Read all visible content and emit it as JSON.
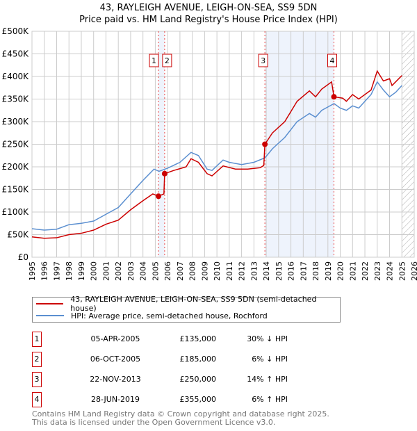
{
  "chart_data": {
    "type": "line",
    "title": "43, RAYLEIGH AVENUE, LEIGH-ON-SEA, SS9 5DN",
    "subtitle": "Price paid vs. HM Land Registry's House Price Index (HPI)",
    "xlim": [
      1995,
      2026
    ],
    "ylim": [
      0,
      500000
    ],
    "x_ticks": [
      "1995",
      "1996",
      "1997",
      "1998",
      "1999",
      "2000",
      "2001",
      "2002",
      "2003",
      "2004",
      "2005",
      "2006",
      "2007",
      "2008",
      "2009",
      "2010",
      "2011",
      "2012",
      "2013",
      "2014",
      "2015",
      "2016",
      "2017",
      "2018",
      "2019",
      "2020",
      "2021",
      "2022",
      "2023",
      "2024",
      "2025",
      "2026"
    ],
    "y_ticks": [
      {
        "v": 0,
        "label": "£0"
      },
      {
        "v": 50000,
        "label": "£50K"
      },
      {
        "v": 100000,
        "label": "£100K"
      },
      {
        "v": 150000,
        "label": "£150K"
      },
      {
        "v": 200000,
        "label": "£200K"
      },
      {
        "v": 250000,
        "label": "£250K"
      },
      {
        "v": 300000,
        "label": "£300K"
      },
      {
        "v": 350000,
        "label": "£350K"
      },
      {
        "v": 400000,
        "label": "£400K"
      },
      {
        "v": 450000,
        "label": "£450K"
      },
      {
        "v": 500000,
        "label": "£500K"
      }
    ],
    "grid": true,
    "series": [
      {
        "name": "43, RAYLEIGH AVENUE, LEIGH-ON-SEA, SS9 5DN (semi-detached house)",
        "color": "#cc0000",
        "x": [
          1995,
          1996,
          1997,
          1998,
          1999,
          2000,
          2001,
          2002,
          2003,
          2004,
          2004.8,
          2005.26,
          2005.7,
          2005.76,
          2006.5,
          2007.5,
          2007.9,
          2008.5,
          2009.2,
          2009.6,
          2010.5,
          2011.5,
          2012.5,
          2013.5,
          2013.8,
          2013.89,
          2014.5,
          2015.5,
          2016.5,
          2017.5,
          2018,
          2018.5,
          2019.3,
          2019.49,
          2020.2,
          2020.5,
          2021,
          2021.5,
          2022.5,
          2023,
          2023.5,
          2024,
          2024.2,
          2025
        ],
        "y": [
          45000,
          42000,
          43000,
          50000,
          53000,
          60000,
          73000,
          82000,
          105000,
          125000,
          140000,
          135000,
          140000,
          185000,
          192000,
          200000,
          218000,
          210000,
          185000,
          180000,
          202000,
          195000,
          195000,
          198000,
          203000,
          250000,
          275000,
          300000,
          345000,
          368000,
          355000,
          372000,
          388000,
          355000,
          352000,
          345000,
          360000,
          350000,
          370000,
          412000,
          390000,
          395000,
          380000,
          402000
        ]
      },
      {
        "name": "HPI: Average price, semi-detached house, Rochford",
        "color": "#5b8fd0",
        "x": [
          1995,
          1996,
          1997,
          1998,
          1999,
          2000,
          2001,
          2002,
          2003,
          2004,
          2004.9,
          2005.3,
          2006,
          2007,
          2007.9,
          2008.5,
          2009.2,
          2009.6,
          2010.5,
          2011,
          2012,
          2013,
          2013.9,
          2014.5,
          2015.5,
          2016.5,
          2017.5,
          2018,
          2018.5,
          2019.5,
          2020,
          2020.5,
          2021,
          2021.5,
          2022,
          2022.5,
          2023,
          2023.5,
          2024,
          2024.5,
          2025
        ],
        "y": [
          63000,
          60000,
          62000,
          72000,
          75000,
          80000,
          95000,
          110000,
          140000,
          170000,
          195000,
          190000,
          197000,
          210000,
          232000,
          225000,
          195000,
          192000,
          215000,
          210000,
          205000,
          210000,
          220000,
          240000,
          265000,
          300000,
          318000,
          310000,
          325000,
          340000,
          330000,
          325000,
          335000,
          330000,
          345000,
          360000,
          388000,
          370000,
          355000,
          365000,
          380000
        ]
      }
    ],
    "sales": [
      {
        "id": "1",
        "x": 2005.26,
        "y": 135000,
        "date": "05-APR-2005",
        "price": "£135,000",
        "hpi": "30% ↓ HPI"
      },
      {
        "id": "2",
        "x": 2005.76,
        "y": 185000,
        "date": "06-OCT-2005",
        "price": "£185,000",
        "hpi": "6% ↓ HPI"
      },
      {
        "id": "3",
        "x": 2013.89,
        "y": 250000,
        "date": "22-NOV-2013",
        "price": "£250,000",
        "hpi": "14% ↑ HPI"
      },
      {
        "id": "4",
        "x": 2019.49,
        "y": 355000,
        "date": "28-JUN-2019",
        "price": "£355,000",
        "hpi": "6% ↑ HPI"
      }
    ],
    "shaded_ranges": [
      [
        2005.26,
        2005.76
      ],
      [
        2013.89,
        2019.49
      ]
    ],
    "hatched_from": 2025.0,
    "shade_color": "#eef3fc",
    "legend_placement": "below"
  },
  "footer": {
    "line1": "Contains HM Land Registry data © Crown copyright and database right 2025.",
    "line2": "This data is licensed under the Open Government Licence v3.0."
  }
}
